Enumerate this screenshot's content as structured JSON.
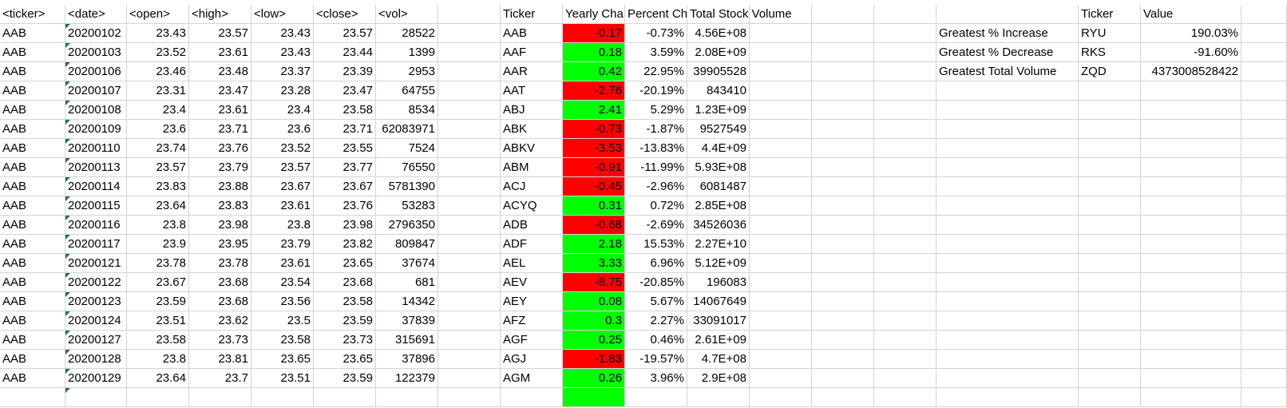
{
  "colors": {
    "positive": "#00ff00",
    "negative": "#ff0000",
    "indicator": "#217346",
    "grid": "#d4d4d4"
  },
  "headers": {
    "raw": [
      "<ticker>",
      "<date>",
      "<open>",
      "<high>",
      "<low>",
      "<close>",
      "<vol>"
    ],
    "summary": [
      "Ticker",
      "Yearly Cha",
      "Percent Ch",
      "Total Stock Volume"
    ],
    "greatest": [
      "Ticker",
      "Value"
    ]
  },
  "rows": [
    {
      "raw": [
        "AAB",
        "20200102",
        "23.43",
        "23.57",
        "23.43",
        "23.57",
        "28522"
      ],
      "summary": [
        "AAB",
        "-0.17",
        "-0.73%",
        "4.56E+08"
      ],
      "sign": "neg",
      "greatest": [
        "Greatest % Increase",
        "RYU",
        "190.03%"
      ]
    },
    {
      "raw": [
        "AAB",
        "20200103",
        "23.52",
        "23.61",
        "23.43",
        "23.44",
        "1399"
      ],
      "summary": [
        "AAF",
        "0.18",
        "3.59%",
        "2.08E+09"
      ],
      "sign": "pos",
      "greatest": [
        "Greatest % Decrease",
        "RKS",
        "-91.60%"
      ]
    },
    {
      "raw": [
        "AAB",
        "20200106",
        "23.46",
        "23.48",
        "23.37",
        "23.39",
        "2953"
      ],
      "summary": [
        "AAR",
        "0.42",
        "22.95%",
        "39905528"
      ],
      "sign": "pos",
      "greatest": [
        "Greatest Total Volume",
        "ZQD",
        "4373008528422"
      ]
    },
    {
      "raw": [
        "AAB",
        "20200107",
        "23.31",
        "23.47",
        "23.28",
        "23.47",
        "64755"
      ],
      "summary": [
        "AAT",
        "-2.76",
        "-20.19%",
        "843410"
      ],
      "sign": "neg"
    },
    {
      "raw": [
        "AAB",
        "20200108",
        "23.4",
        "23.61",
        "23.4",
        "23.58",
        "8534"
      ],
      "summary": [
        "ABJ",
        "2.41",
        "5.29%",
        "1.23E+09"
      ],
      "sign": "pos"
    },
    {
      "raw": [
        "AAB",
        "20200109",
        "23.6",
        "23.71",
        "23.6",
        "23.71",
        "62083971"
      ],
      "summary": [
        "ABK",
        "-0.73",
        "-1.87%",
        "9527549"
      ],
      "sign": "neg"
    },
    {
      "raw": [
        "AAB",
        "20200110",
        "23.74",
        "23.76",
        "23.52",
        "23.55",
        "7524"
      ],
      "summary": [
        "ABKV",
        "-3.53",
        "-13.83%",
        "4.4E+09"
      ],
      "sign": "neg"
    },
    {
      "raw": [
        "AAB",
        "20200113",
        "23.57",
        "23.79",
        "23.57",
        "23.77",
        "76550"
      ],
      "summary": [
        "ABM",
        "-0.91",
        "-11.99%",
        "5.93E+08"
      ],
      "sign": "neg"
    },
    {
      "raw": [
        "AAB",
        "20200114",
        "23.83",
        "23.88",
        "23.67",
        "23.67",
        "5781390"
      ],
      "summary": [
        "ACJ",
        "-0.45",
        "-2.96%",
        "6081487"
      ],
      "sign": "neg"
    },
    {
      "raw": [
        "AAB",
        "20200115",
        "23.64",
        "23.83",
        "23.61",
        "23.76",
        "53283"
      ],
      "summary": [
        "ACYQ",
        "0.31",
        "0.72%",
        "2.85E+08"
      ],
      "sign": "pos"
    },
    {
      "raw": [
        "AAB",
        "20200116",
        "23.8",
        "23.98",
        "23.8",
        "23.98",
        "2796350"
      ],
      "summary": [
        "ADB",
        "-0.68",
        "-2.69%",
        "34526036"
      ],
      "sign": "neg"
    },
    {
      "raw": [
        "AAB",
        "20200117",
        "23.9",
        "23.95",
        "23.79",
        "23.82",
        "809847"
      ],
      "summary": [
        "ADF",
        "2.18",
        "15.53%",
        "2.27E+10"
      ],
      "sign": "pos"
    },
    {
      "raw": [
        "AAB",
        "20200121",
        "23.78",
        "23.78",
        "23.61",
        "23.65",
        "37674"
      ],
      "summary": [
        "AEL",
        "3.33",
        "6.96%",
        "5.12E+09"
      ],
      "sign": "pos"
    },
    {
      "raw": [
        "AAB",
        "20200122",
        "23.67",
        "23.68",
        "23.54",
        "23.68",
        "681"
      ],
      "summary": [
        "AEV",
        "-8.75",
        "-20.85%",
        "196083"
      ],
      "sign": "neg"
    },
    {
      "raw": [
        "AAB",
        "20200123",
        "23.59",
        "23.68",
        "23.56",
        "23.58",
        "14342"
      ],
      "summary": [
        "AEY",
        "0.08",
        "5.67%",
        "14067649"
      ],
      "sign": "pos"
    },
    {
      "raw": [
        "AAB",
        "20200124",
        "23.51",
        "23.62",
        "23.5",
        "23.59",
        "37839"
      ],
      "summary": [
        "AFZ",
        "0.3",
        "2.27%",
        "33091017"
      ],
      "sign": "pos"
    },
    {
      "raw": [
        "AAB",
        "20200127",
        "23.58",
        "23.73",
        "23.58",
        "23.73",
        "315691"
      ],
      "summary": [
        "AGF",
        "0.25",
        "0.46%",
        "2.61E+09"
      ],
      "sign": "pos"
    },
    {
      "raw": [
        "AAB",
        "20200128",
        "23.8",
        "23.81",
        "23.65",
        "23.65",
        "37896"
      ],
      "summary": [
        "AGJ",
        "-1.83",
        "-19.57%",
        "4.7E+08"
      ],
      "sign": "neg"
    },
    {
      "raw": [
        "AAB",
        "20200129",
        "23.64",
        "23.7",
        "23.51",
        "23.59",
        "122379"
      ],
      "summary": [
        "AGM",
        "0.26",
        "3.96%",
        "2.9E+08"
      ],
      "sign": "pos"
    }
  ]
}
